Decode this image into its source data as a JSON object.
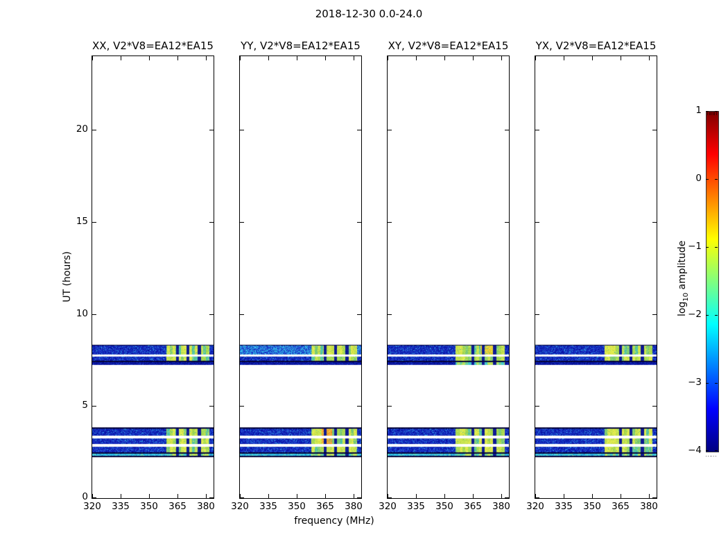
{
  "chart_data": {
    "type": "heatmap",
    "title": "2018-12-30 0.0-24.0",
    "colormap": "jet",
    "panels": [
      {
        "label": "XX, V2*V8=EA12*EA15",
        "pol": "XX",
        "bright_start_mhz": 359.0,
        "hot_spots": []
      },
      {
        "label": "YY, V2*V8=EA12*EA15",
        "pol": "YY",
        "bright_start_mhz": 357.5,
        "row_palette_overrides": {
          "1": "blue_light"
        },
        "hot_spots": [
          {
            "rows": [
              6,
              7
            ],
            "f0": 363.0,
            "f1": 368.5,
            "color": "#f29a2c"
          }
        ]
      },
      {
        "label": "XY, V2*V8=EA12*EA15",
        "pol": "XY",
        "bright_start_mhz": 355.5,
        "row_bright_overrides": {
          "4": true
        },
        "hot_spots": [
          {
            "rows": [
              1
            ],
            "f0": 369.0,
            "f1": 376.0,
            "color": "#eecb30"
          }
        ]
      },
      {
        "label": "YX, V2*V8=EA12*EA15",
        "pol": "YX",
        "bright_start_mhz": 356.5,
        "hot_spots": []
      }
    ],
    "x_axis": {
      "label": "frequency (MHz)",
      "min": 320,
      "max": 384,
      "ticks": [
        320,
        335,
        350,
        365,
        380
      ],
      "tick_labels": [
        "320",
        "335",
        "350",
        "365",
        "380"
      ]
    },
    "y_axis": {
      "label": "UT (hours)",
      "min": 0,
      "max": 24,
      "ticks": [
        0,
        5,
        10,
        15,
        20
      ],
      "tick_labels": [
        "0",
        "5",
        "10",
        "15",
        "20"
      ]
    },
    "colorbar": {
      "label_prefix": "log",
      "label_sub": "10",
      "label_rest": " amplitude",
      "min": -4,
      "max": 1,
      "ticks": [
        1,
        0,
        -1,
        -2,
        -3,
        -4
      ],
      "tick_labels": [
        "1",
        "0",
        "−1",
        "−2",
        "−3",
        "−4"
      ],
      "stops": [
        {
          "pos": 0.0,
          "color": "#00007f"
        },
        {
          "pos": 0.125,
          "color": "#0000ff"
        },
        {
          "pos": 0.375,
          "color": "#00ffff"
        },
        {
          "pos": 0.625,
          "color": "#ffff00"
        },
        {
          "pos": 0.875,
          "color": "#ff0000"
        },
        {
          "pos": 1.0,
          "color": "#7f0000"
        }
      ]
    },
    "bands": {
      "comment": "two RFI/scan band groups: UT ~7.2-8.3 and UT ~2.2-3.8; bright RFI blocks ~356-382 MHz",
      "bright_end_mhz": 381.5,
      "separators_mhz": [
        364.8,
        370.3,
        376.3
      ],
      "separator_halfwidth_mhz": 0.8,
      "rows": [
        {
          "ut_min": 8.28,
          "ut_max": 8.33,
          "palette": "darkline",
          "bright": false
        },
        {
          "ut_min": 7.79,
          "ut_max": 8.28,
          "palette": "blue",
          "bright": true
        },
        {
          "ut_min": 7.47,
          "ut_max": 7.68,
          "palette": "blue",
          "bright": true
        },
        {
          "ut_min": 7.4,
          "ut_max": 7.45,
          "palette": "darkline",
          "bright": false
        },
        {
          "ut_min": 7.23,
          "ut_max": 7.38,
          "palette": "blue_dark",
          "bright": false
        },
        {
          "ut_min": 3.78,
          "ut_max": 3.83,
          "palette": "darkline",
          "bright": false
        },
        {
          "ut_min": 3.39,
          "ut_max": 3.78,
          "palette": "blue",
          "bright": true
        },
        {
          "ut_min": 2.94,
          "ut_max": 3.24,
          "palette": "blue",
          "bright": true
        },
        {
          "ut_min": 2.48,
          "ut_max": 2.8,
          "palette": "blue",
          "bright": true
        },
        {
          "ut_min": 2.43,
          "ut_max": 2.48,
          "palette": "darkline",
          "bright": false
        },
        {
          "ut_min": 2.3,
          "ut_max": 2.43,
          "palette": "cyan",
          "bright": true
        },
        {
          "ut_min": 2.24,
          "ut_max": 2.3,
          "palette": "darkline",
          "bright": false
        }
      ]
    },
    "palettes": {
      "blue": [
        [
          "#0a14a8",
          0.33
        ],
        [
          "#1632c4",
          0.3
        ],
        [
          "#2450d2",
          0.2
        ],
        [
          "#101ca8",
          0.09
        ],
        [
          "#2e9fe0",
          0.08
        ]
      ],
      "blue_light": [
        [
          "#1632c4",
          0.28
        ],
        [
          "#2450d2",
          0.24
        ],
        [
          "#2e9fe0",
          0.26
        ],
        [
          "#38c4ec",
          0.22
        ]
      ],
      "blue_dark": [
        [
          "#060e90",
          0.5
        ],
        [
          "#0c1cae",
          0.35
        ],
        [
          "#1838c8",
          0.15
        ]
      ],
      "cyan": [
        [
          "#2ec2ea",
          0.45
        ],
        [
          "#4fd2de",
          0.25
        ],
        [
          "#1a86dc",
          0.2
        ],
        [
          "#7adc9e",
          0.1
        ]
      ],
      "darkline": [
        [
          "#05053c",
          1.0
        ]
      ],
      "bright": [
        [
          "#dde94e",
          0.3
        ],
        [
          "#c9e34f",
          0.25
        ],
        [
          "#a6d952",
          0.2
        ],
        [
          "#7ccb76",
          0.15
        ],
        [
          "#52c4a6",
          0.1
        ]
      ],
      "cyanbright": [
        [
          "#bfe356",
          0.38
        ],
        [
          "#6fd292",
          0.32
        ],
        [
          "#3ec8cf",
          0.3
        ]
      ]
    }
  }
}
